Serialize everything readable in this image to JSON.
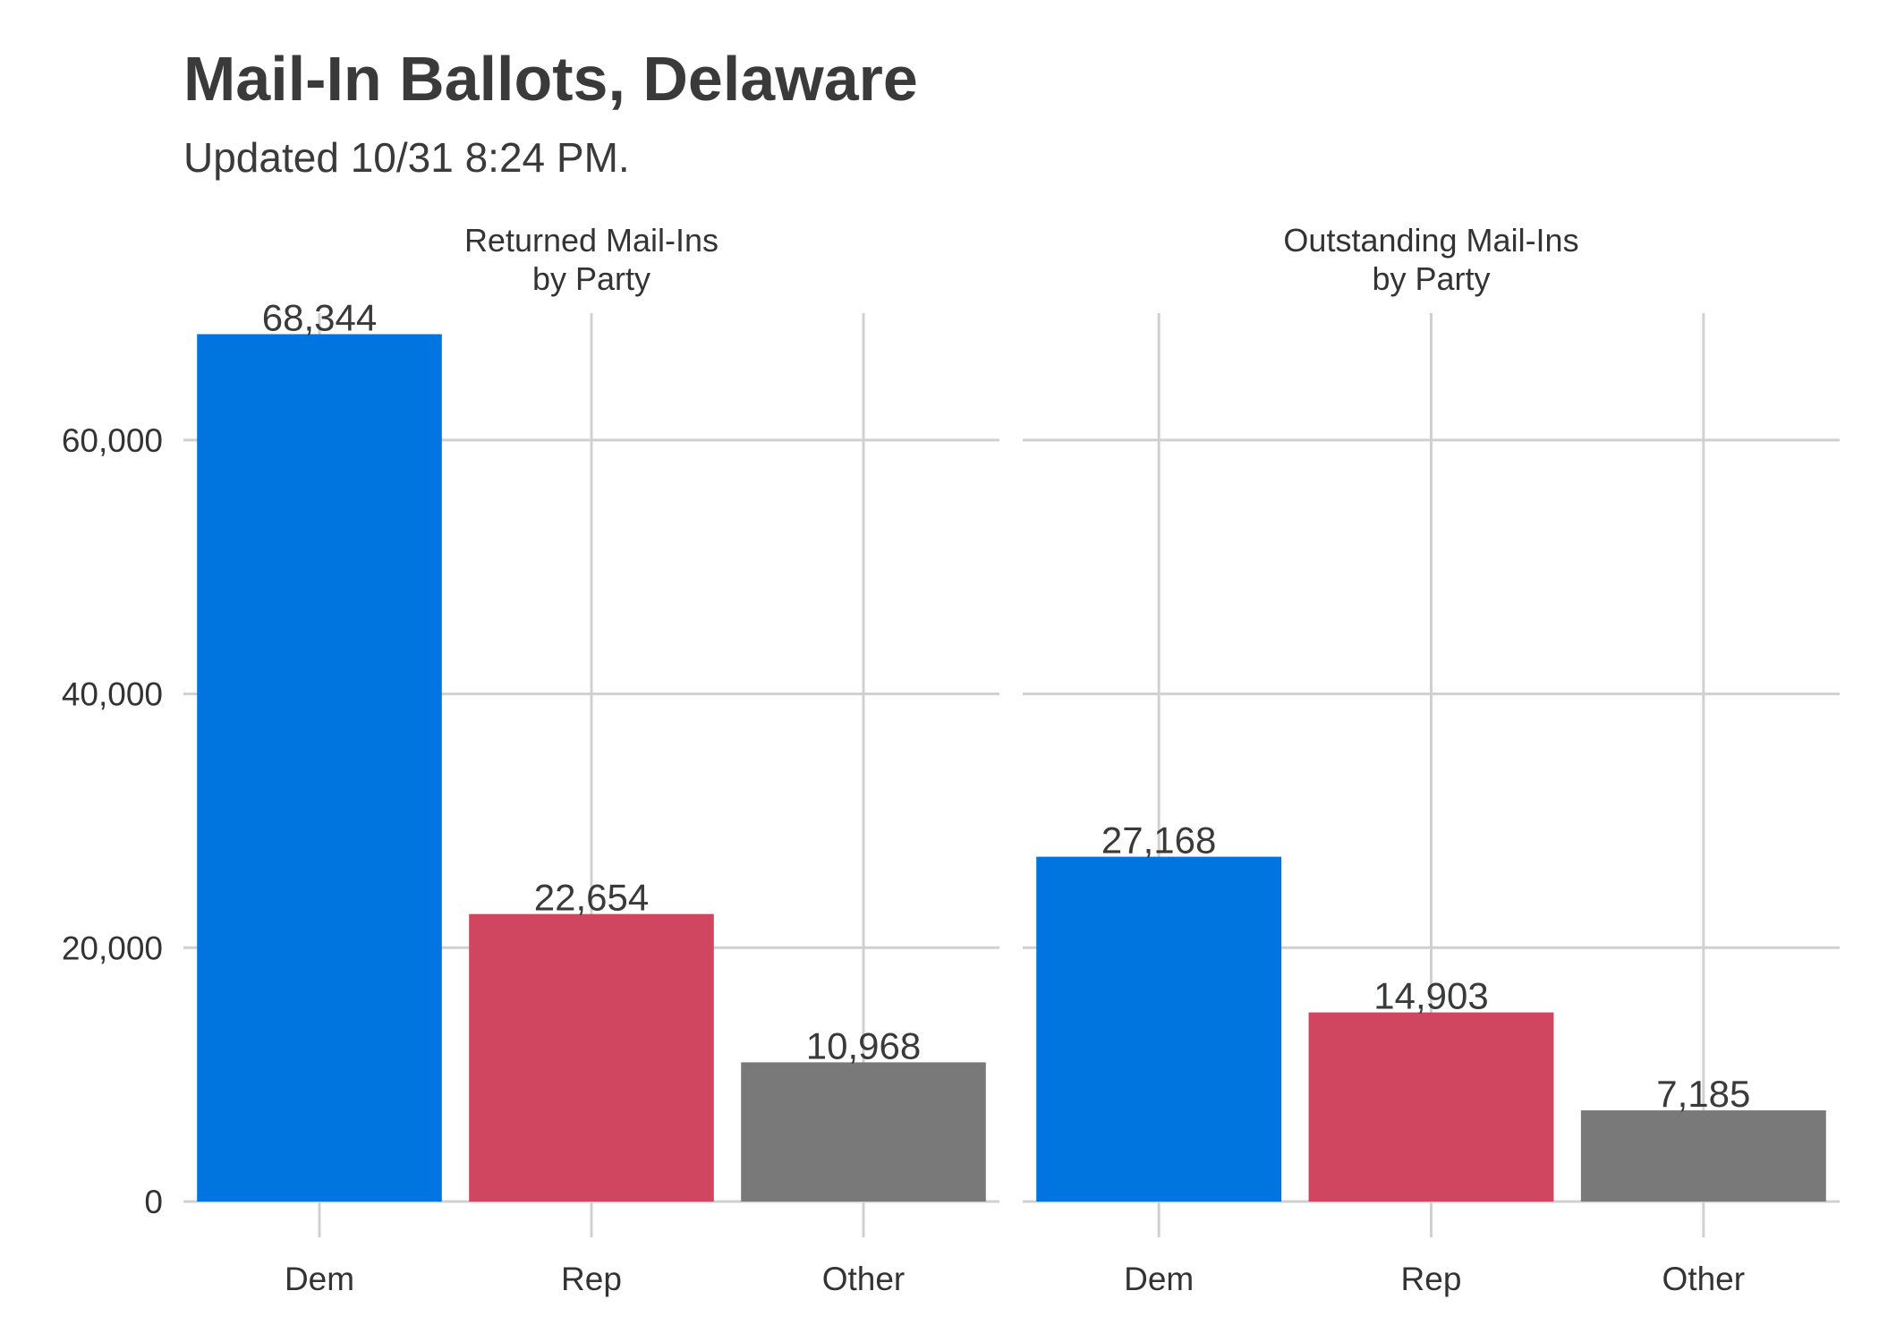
{
  "title": "Mail-In Ballots, Delaware",
  "subtitle": "Updated 10/31 8:24 PM.",
  "colors": {
    "Dem": "#0075E0",
    "Rep": "#D0455F",
    "Other": "#797979"
  },
  "chart_data": [
    {
      "type": "bar",
      "panel_title": [
        "Returned Mail-Ins",
        "by Party"
      ],
      "categories": [
        "Dem",
        "Rep",
        "Other"
      ],
      "values": [
        68344,
        22654,
        10968
      ],
      "value_labels": [
        "68,344",
        "22,654",
        "10,968"
      ],
      "ylim": [
        0,
        70000
      ],
      "yticks": [
        0,
        20000,
        40000,
        60000
      ],
      "ytick_labels": [
        "0",
        "20,000",
        "40,000",
        "60,000"
      ]
    },
    {
      "type": "bar",
      "panel_title": [
        "Outstanding Mail-Ins",
        "by Party"
      ],
      "categories": [
        "Dem",
        "Rep",
        "Other"
      ],
      "values": [
        27168,
        14903,
        7185
      ],
      "value_labels": [
        "27,168",
        "14,903",
        "7,185"
      ],
      "ylim": [
        0,
        70000
      ],
      "yticks": [
        0,
        20000,
        40000,
        60000
      ],
      "ytick_labels": [
        "0",
        "20,000",
        "40,000",
        "60,000"
      ]
    }
  ]
}
